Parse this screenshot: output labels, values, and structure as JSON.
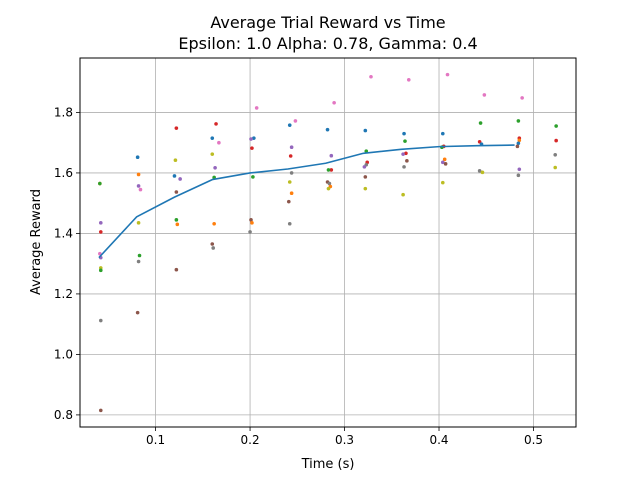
{
  "chart_data": {
    "type": "scatter",
    "title_line1": "Average Trial Reward vs Time",
    "title_line2": "Epsilon: 1.0 Alpha: 0.78, Gamma: 0.4",
    "xlabel": "Time (s)",
    "ylabel": "Average Reward",
    "xlim": [
      0.02,
      0.545
    ],
    "ylim": [
      0.76,
      1.98
    ],
    "xticks": [
      0.1,
      0.2,
      0.3,
      0.4,
      0.5
    ],
    "xtick_labels": [
      "0.1",
      "0.2",
      "0.3",
      "0.4",
      "0.5"
    ],
    "yticks": [
      0.8,
      1.0,
      1.2,
      1.4,
      1.6,
      1.8
    ],
    "ytick_labels": [
      "0.8",
      "1.0",
      "1.2",
      "1.4",
      "1.6",
      "1.8"
    ],
    "grid": true,
    "line_color": "#1f77b4",
    "mean_line": {
      "x": [
        0.04,
        0.08,
        0.12,
        0.16,
        0.2,
        0.24,
        0.28,
        0.32,
        0.36,
        0.4,
        0.44,
        0.48
      ],
      "y": [
        1.32,
        1.455,
        1.52,
        1.578,
        1.6,
        1.613,
        1.632,
        1.665,
        1.678,
        1.687,
        1.69,
        1.692
      ]
    },
    "points": [
      {
        "x": 0.041,
        "y": 1.565,
        "color": "#ff7f0e"
      },
      {
        "x": 0.041,
        "y": 1.565,
        "color": "#2ca02c"
      },
      {
        "x": 0.042,
        "y": 1.435,
        "color": "#9467bd"
      },
      {
        "x": 0.042,
        "y": 1.405,
        "color": "#d62728"
      },
      {
        "x": 0.041,
        "y": 1.333,
        "color": "#e377c2"
      },
      {
        "x": 0.042,
        "y": 1.32,
        "color": "#9467bd"
      },
      {
        "x": 0.042,
        "y": 1.286,
        "color": "#bcbd22"
      },
      {
        "x": 0.042,
        "y": 1.278,
        "color": "#2ca02c"
      },
      {
        "x": 0.042,
        "y": 1.112,
        "color": "#7f7f7f"
      },
      {
        "x": 0.042,
        "y": 0.815,
        "color": "#8c564b"
      },
      {
        "x": 0.081,
        "y": 1.652,
        "color": "#1f77b4"
      },
      {
        "x": 0.082,
        "y": 1.595,
        "color": "#ff7f0e"
      },
      {
        "x": 0.082,
        "y": 1.557,
        "color": "#9467bd"
      },
      {
        "x": 0.084,
        "y": 1.545,
        "color": "#e377c2"
      },
      {
        "x": 0.082,
        "y": 1.435,
        "color": "#bcbd22"
      },
      {
        "x": 0.083,
        "y": 1.327,
        "color": "#2ca02c"
      },
      {
        "x": 0.082,
        "y": 1.307,
        "color": "#7f7f7f"
      },
      {
        "x": 0.081,
        "y": 1.138,
        "color": "#8c564b"
      },
      {
        "x": 0.122,
        "y": 1.748,
        "color": "#d62728"
      },
      {
        "x": 0.121,
        "y": 1.642,
        "color": "#bcbd22"
      },
      {
        "x": 0.12,
        "y": 1.59,
        "color": "#1f77b4"
      },
      {
        "x": 0.126,
        "y": 1.58,
        "color": "#9467bd"
      },
      {
        "x": 0.122,
        "y": 1.537,
        "color": "#8c564b"
      },
      {
        "x": 0.122,
        "y": 1.445,
        "color": "#2ca02c"
      },
      {
        "x": 0.123,
        "y": 1.43,
        "color": "#ff7f0e"
      },
      {
        "x": 0.122,
        "y": 1.28,
        "color": "#8c564b"
      },
      {
        "x": 0.164,
        "y": 1.762,
        "color": "#d62728"
      },
      {
        "x": 0.16,
        "y": 1.715,
        "color": "#1f77b4"
      },
      {
        "x": 0.167,
        "y": 1.7,
        "color": "#e377c2"
      },
      {
        "x": 0.16,
        "y": 1.662,
        "color": "#bcbd22"
      },
      {
        "x": 0.163,
        "y": 1.617,
        "color": "#9467bd"
      },
      {
        "x": 0.162,
        "y": 1.585,
        "color": "#2ca02c"
      },
      {
        "x": 0.162,
        "y": 1.432,
        "color": "#ff7f0e"
      },
      {
        "x": 0.16,
        "y": 1.365,
        "color": "#8c564b"
      },
      {
        "x": 0.161,
        "y": 1.352,
        "color": "#7f7f7f"
      },
      {
        "x": 0.207,
        "y": 1.815,
        "color": "#e377c2"
      },
      {
        "x": 0.204,
        "y": 1.715,
        "color": "#1f77b4"
      },
      {
        "x": 0.201,
        "y": 1.712,
        "color": "#9467bd"
      },
      {
        "x": 0.202,
        "y": 1.682,
        "color": "#d62728"
      },
      {
        "x": 0.203,
        "y": 1.587,
        "color": "#2ca02c"
      },
      {
        "x": 0.201,
        "y": 1.445,
        "color": "#8c564b"
      },
      {
        "x": 0.202,
        "y": 1.435,
        "color": "#ff7f0e"
      },
      {
        "x": 0.2,
        "y": 1.405,
        "color": "#7f7f7f"
      },
      {
        "x": 0.248,
        "y": 1.772,
        "color": "#e377c2"
      },
      {
        "x": 0.242,
        "y": 1.758,
        "color": "#1f77b4"
      },
      {
        "x": 0.244,
        "y": 1.685,
        "color": "#9467bd"
      },
      {
        "x": 0.243,
        "y": 1.656,
        "color": "#d62728"
      },
      {
        "x": 0.244,
        "y": 1.6,
        "color": "#7f7f7f"
      },
      {
        "x": 0.242,
        "y": 1.57,
        "color": "#bcbd22"
      },
      {
        "x": 0.244,
        "y": 1.533,
        "color": "#ff7f0e"
      },
      {
        "x": 0.241,
        "y": 1.505,
        "color": "#8c564b"
      },
      {
        "x": 0.242,
        "y": 1.432,
        "color": "#7f7f7f"
      },
      {
        "x": 0.289,
        "y": 1.832,
        "color": "#e377c2"
      },
      {
        "x": 0.282,
        "y": 1.743,
        "color": "#1f77b4"
      },
      {
        "x": 0.286,
        "y": 1.657,
        "color": "#9467bd"
      },
      {
        "x": 0.286,
        "y": 1.61,
        "color": "#d62728"
      },
      {
        "x": 0.283,
        "y": 1.61,
        "color": "#2ca02c"
      },
      {
        "x": 0.282,
        "y": 1.57,
        "color": "#8c564b"
      },
      {
        "x": 0.284,
        "y": 1.565,
        "color": "#7f7f7f"
      },
      {
        "x": 0.285,
        "y": 1.555,
        "color": "#ff7f0e"
      },
      {
        "x": 0.283,
        "y": 1.548,
        "color": "#bcbd22"
      },
      {
        "x": 0.328,
        "y": 1.918,
        "color": "#e377c2"
      },
      {
        "x": 0.322,
        "y": 1.74,
        "color": "#1f77b4"
      },
      {
        "x": 0.323,
        "y": 1.672,
        "color": "#2ca02c"
      },
      {
        "x": 0.324,
        "y": 1.635,
        "color": "#d62728"
      },
      {
        "x": 0.323,
        "y": 1.627,
        "color": "#7f7f7f"
      },
      {
        "x": 0.321,
        "y": 1.62,
        "color": "#9467bd"
      },
      {
        "x": 0.322,
        "y": 1.587,
        "color": "#8c564b"
      },
      {
        "x": 0.322,
        "y": 1.548,
        "color": "#bcbd22"
      },
      {
        "x": 0.368,
        "y": 1.908,
        "color": "#e377c2"
      },
      {
        "x": 0.363,
        "y": 1.73,
        "color": "#1f77b4"
      },
      {
        "x": 0.364,
        "y": 1.705,
        "color": "#2ca02c"
      },
      {
        "x": 0.365,
        "y": 1.665,
        "color": "#d62728"
      },
      {
        "x": 0.362,
        "y": 1.662,
        "color": "#9467bd"
      },
      {
        "x": 0.366,
        "y": 1.64,
        "color": "#8c564b"
      },
      {
        "x": 0.363,
        "y": 1.62,
        "color": "#7f7f7f"
      },
      {
        "x": 0.362,
        "y": 1.528,
        "color": "#bcbd22"
      },
      {
        "x": 0.409,
        "y": 1.925,
        "color": "#e377c2"
      },
      {
        "x": 0.404,
        "y": 1.73,
        "color": "#1f77b4"
      },
      {
        "x": 0.405,
        "y": 1.688,
        "color": "#d62728"
      },
      {
        "x": 0.403,
        "y": 1.685,
        "color": "#2ca02c"
      },
      {
        "x": 0.406,
        "y": 1.645,
        "color": "#ff7f0e"
      },
      {
        "x": 0.404,
        "y": 1.635,
        "color": "#9467bd"
      },
      {
        "x": 0.407,
        "y": 1.63,
        "color": "#8c564b"
      },
      {
        "x": 0.404,
        "y": 1.568,
        "color": "#bcbd22"
      },
      {
        "x": 0.448,
        "y": 1.858,
        "color": "#e377c2"
      },
      {
        "x": 0.444,
        "y": 1.765,
        "color": "#2ca02c"
      },
      {
        "x": 0.443,
        "y": 1.703,
        "color": "#d62728"
      },
      {
        "x": 0.445,
        "y": 1.695,
        "color": "#1f77b4"
      },
      {
        "x": 0.443,
        "y": 1.607,
        "color": "#7f7f7f"
      },
      {
        "x": 0.446,
        "y": 1.602,
        "color": "#bcbd22"
      },
      {
        "x": 0.488,
        "y": 1.848,
        "color": "#e377c2"
      },
      {
        "x": 0.484,
        "y": 1.772,
        "color": "#2ca02c"
      },
      {
        "x": 0.485,
        "y": 1.715,
        "color": "#d62728"
      },
      {
        "x": 0.485,
        "y": 1.708,
        "color": "#ff7f0e"
      },
      {
        "x": 0.484,
        "y": 1.698,
        "color": "#1f77b4"
      },
      {
        "x": 0.483,
        "y": 1.688,
        "color": "#8c564b"
      },
      {
        "x": 0.485,
        "y": 1.612,
        "color": "#9467bd"
      },
      {
        "x": 0.484,
        "y": 1.592,
        "color": "#7f7f7f"
      },
      {
        "x": 0.524,
        "y": 1.755,
        "color": "#2ca02c"
      },
      {
        "x": 0.524,
        "y": 1.707,
        "color": "#d62728"
      },
      {
        "x": 0.523,
        "y": 1.66,
        "color": "#7f7f7f"
      },
      {
        "x": 0.523,
        "y": 1.618,
        "color": "#bcbd22"
      }
    ]
  }
}
